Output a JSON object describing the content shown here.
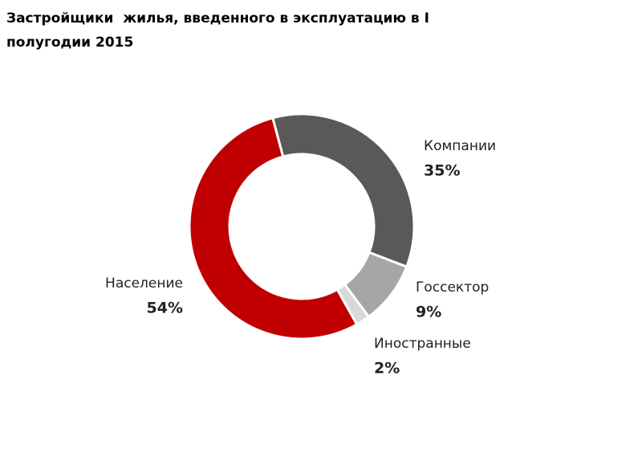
{
  "chart_data": {
    "type": "donut",
    "title": "Застройщики  жилья, введенного в эксплуатацию в I полугодии 2015",
    "categories": [
      "Компании",
      "Госсектор",
      "Иностранные",
      "Население"
    ],
    "values": [
      35,
      9,
      2,
      54
    ],
    "value_labels": [
      "35%",
      "9%",
      "2%",
      "54%"
    ],
    "colors": [
      "#595959",
      "#a6a6a6",
      "#d9d9d9",
      "#c00000"
    ]
  }
}
